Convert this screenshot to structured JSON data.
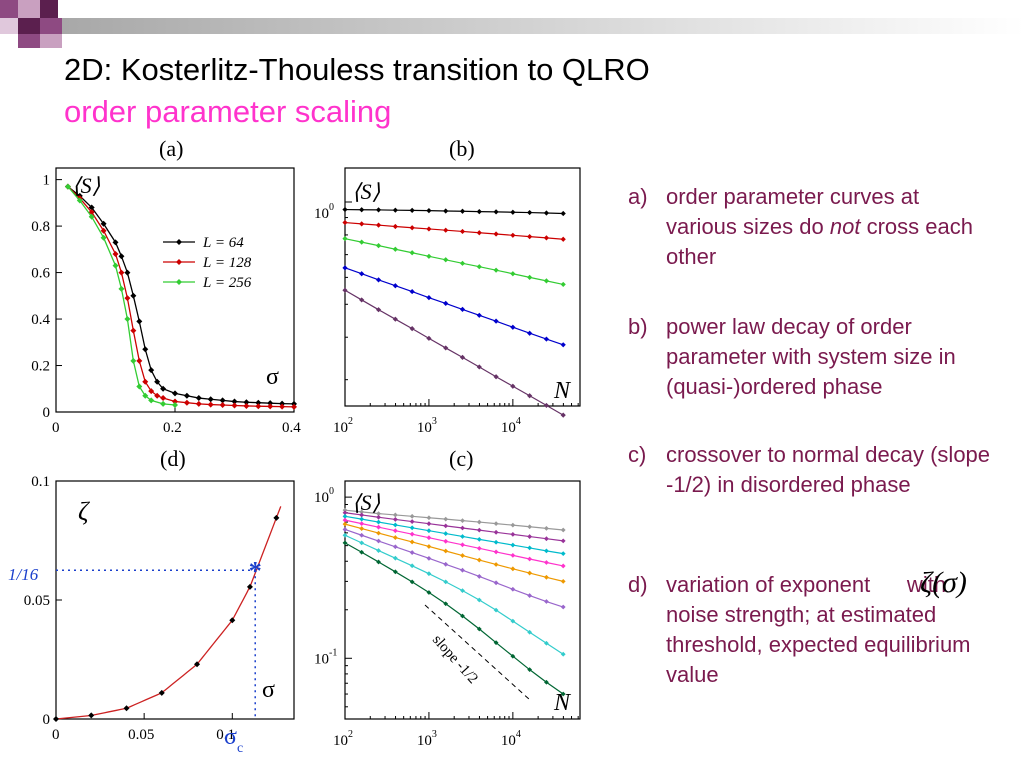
{
  "slide": {
    "title": "2D: Kosterlitz-Thouless transition to QLRO",
    "subtitle": "order parameter scaling",
    "colors": {
      "title": "#000000",
      "subtitle": "#ff33cc",
      "notes": "#7a1a4e",
      "deco_dark": "#5b1f4e",
      "deco_mid": "#8e4a82",
      "deco_light": "#c9a0c0"
    }
  },
  "panels": {
    "a": {
      "label": "(a)",
      "y_axis_label": "⟨S⟩",
      "x_axis_label": "σ",
      "x_ticks": [
        "0",
        "0.2",
        "0.4"
      ],
      "y_ticks": [
        "0",
        "0.2",
        "0.4",
        "0.6",
        "0.8",
        "1"
      ]
    },
    "b": {
      "label": "(b)",
      "y_axis_label": "⟨S⟩",
      "x_axis_label": "N",
      "y_tick": "10",
      "y_tick_exp": "0",
      "x_ticks": [
        {
          "base": "10",
          "exp": "2"
        },
        {
          "base": "10",
          "exp": "3"
        },
        {
          "base": "10",
          "exp": "4"
        }
      ]
    },
    "c": {
      "label": "(c)",
      "y_axis_label": "⟨S⟩",
      "x_axis_label": "N",
      "y_ticks": [
        {
          "base": "10",
          "exp": "0"
        },
        {
          "base": "10",
          "exp": "-1"
        }
      ],
      "x_ticks": [
        {
          "base": "10",
          "exp": "2"
        },
        {
          "base": "10",
          "exp": "3"
        },
        {
          "base": "10",
          "exp": "4"
        }
      ],
      "annotation": "slope -1/2"
    },
    "d": {
      "label": "(d)",
      "y_axis_label": "ζ",
      "x_axis_label": "σ",
      "x_ticks": [
        "0",
        "0.05",
        "0.1"
      ],
      "y_ticks": [
        "0",
        "0.05",
        "0.1"
      ],
      "marker_y_label": "1/16",
      "marker_x_label": "σ",
      "marker_x_sub": "c"
    }
  },
  "chart_data": [
    {
      "type": "line",
      "panel": "a",
      "title": "",
      "xlabel": "σ",
      "ylabel": "⟨S⟩",
      "xlim": [
        0,
        0.4
      ],
      "ylim": [
        0,
        1.05
      ],
      "legend": "top-right",
      "series": [
        {
          "name": "L = 64",
          "color": "#000000",
          "x": [
            0.02,
            0.04,
            0.06,
            0.08,
            0.1,
            0.11,
            0.12,
            0.13,
            0.14,
            0.15,
            0.16,
            0.17,
            0.18,
            0.2,
            0.22,
            0.24,
            0.26,
            0.28,
            0.3,
            0.32,
            0.34,
            0.36,
            0.38,
            0.4
          ],
          "y": [
            0.97,
            0.93,
            0.88,
            0.81,
            0.73,
            0.67,
            0.6,
            0.5,
            0.39,
            0.27,
            0.18,
            0.13,
            0.1,
            0.08,
            0.07,
            0.06,
            0.055,
            0.05,
            0.045,
            0.042,
            0.04,
            0.038,
            0.036,
            0.035
          ]
        },
        {
          "name": "L = 128",
          "color": "#cc0000",
          "x": [
            0.02,
            0.04,
            0.06,
            0.08,
            0.1,
            0.11,
            0.12,
            0.13,
            0.14,
            0.15,
            0.16,
            0.17,
            0.18,
            0.2,
            0.22,
            0.24,
            0.26,
            0.28,
            0.3,
            0.32,
            0.34,
            0.36,
            0.38,
            0.4
          ],
          "y": [
            0.97,
            0.92,
            0.86,
            0.78,
            0.68,
            0.6,
            0.49,
            0.35,
            0.22,
            0.13,
            0.09,
            0.07,
            0.06,
            0.045,
            0.04,
            0.035,
            0.032,
            0.03,
            0.028,
            0.026,
            0.025,
            0.024,
            0.023,
            0.022
          ]
        },
        {
          "name": "L = 256",
          "color": "#33cc33",
          "x": [
            0.02,
            0.04,
            0.06,
            0.08,
            0.1,
            0.11,
            0.12,
            0.13,
            0.14,
            0.15,
            0.16,
            0.18,
            0.2
          ],
          "y": [
            0.97,
            0.91,
            0.84,
            0.75,
            0.63,
            0.53,
            0.4,
            0.22,
            0.11,
            0.07,
            0.05,
            0.035,
            0.03
          ]
        }
      ]
    },
    {
      "type": "line",
      "panel": "b",
      "title": "",
      "xlabel": "N",
      "ylabel": "⟨S⟩",
      "x_scale": "log",
      "y_scale": "log",
      "xlim": [
        100,
        63096
      ],
      "ylim": [
        0.251,
        1.259
      ],
      "x": [
        100,
        158,
        251,
        398,
        631,
        1000,
        1585,
        2512,
        3981,
        6310,
        10000,
        15849,
        25119,
        39811
      ],
      "series": [
        {
          "color": "#000000",
          "values": [
            0.95,
            0.949,
            0.948,
            0.946,
            0.945,
            0.943,
            0.941,
            0.939,
            0.937,
            0.935,
            0.933,
            0.931,
            0.928,
            0.925
          ]
        },
        {
          "color": "#cc0000",
          "values": [
            0.87,
            0.862,
            0.855,
            0.847,
            0.84,
            0.833,
            0.826,
            0.819,
            0.812,
            0.805,
            0.798,
            0.791,
            0.784,
            0.777
          ]
        },
        {
          "color": "#33cc33",
          "values": [
            0.78,
            0.762,
            0.744,
            0.726,
            0.709,
            0.692,
            0.676,
            0.66,
            0.645,
            0.63,
            0.615,
            0.6,
            0.586,
            0.572
          ]
        },
        {
          "color": "#0000cc",
          "values": [
            0.64,
            0.615,
            0.59,
            0.567,
            0.545,
            0.523,
            0.503,
            0.483,
            0.464,
            0.446,
            0.428,
            0.411,
            0.395,
            0.38
          ]
        },
        {
          "color": "#663366",
          "values": [
            0.55,
            0.515,
            0.482,
            0.452,
            0.424,
            0.397,
            0.372,
            0.349,
            0.327,
            0.306,
            0.287,
            0.269,
            0.252,
            0.236
          ]
        }
      ]
    },
    {
      "type": "line",
      "panel": "c",
      "title": "",
      "xlabel": "N",
      "ylabel": "⟨S⟩",
      "x_scale": "log",
      "y_scale": "log",
      "xlim": [
        100,
        63096
      ],
      "ylim": [
        0.042,
        1.259
      ],
      "x": [
        100,
        158,
        251,
        398,
        631,
        1000,
        1585,
        2512,
        3981,
        6310,
        10000,
        15849,
        25119,
        39811
      ],
      "series": [
        {
          "color": "#999999",
          "values": [
            0.83,
            0.81,
            0.79,
            0.775,
            0.76,
            0.745,
            0.73,
            0.715,
            0.7,
            0.685,
            0.67,
            0.655,
            0.64,
            0.625
          ]
        },
        {
          "color": "#993399",
          "values": [
            0.8,
            0.775,
            0.75,
            0.727,
            0.705,
            0.684,
            0.663,
            0.643,
            0.624,
            0.605,
            0.587,
            0.569,
            0.552,
            0.535
          ]
        },
        {
          "color": "#00bbcc",
          "values": [
            0.76,
            0.73,
            0.7,
            0.672,
            0.645,
            0.619,
            0.594,
            0.57,
            0.547,
            0.525,
            0.504,
            0.484,
            0.464,
            0.446
          ]
        },
        {
          "color": "#ff33cc",
          "values": [
            0.72,
            0.685,
            0.651,
            0.619,
            0.589,
            0.56,
            0.532,
            0.506,
            0.481,
            0.457,
            0.435,
            0.413,
            0.393,
            0.374
          ]
        },
        {
          "color": "#ee9900",
          "values": [
            0.68,
            0.638,
            0.598,
            0.561,
            0.527,
            0.494,
            0.463,
            0.434,
            0.407,
            0.382,
            0.359,
            0.338,
            0.318,
            0.3
          ]
        },
        {
          "color": "#9966cc",
          "values": [
            0.63,
            0.58,
            0.534,
            0.492,
            0.453,
            0.417,
            0.383,
            0.352,
            0.322,
            0.294,
            0.268,
            0.245,
            0.225,
            0.208
          ]
        },
        {
          "color": "#33cccc",
          "values": [
            0.58,
            0.52,
            0.466,
            0.418,
            0.375,
            0.335,
            0.298,
            0.263,
            0.23,
            0.199,
            0.17,
            0.145,
            0.124,
            0.106
          ]
        },
        {
          "color": "#006633",
          "values": [
            0.52,
            0.455,
            0.396,
            0.344,
            0.298,
            0.256,
            0.218,
            0.183,
            0.152,
            0.125,
            0.103,
            0.085,
            0.071,
            0.06
          ]
        }
      ]
    },
    {
      "type": "scatter",
      "panel": "d",
      "title": "",
      "xlabel": "σ",
      "ylabel": "ζ",
      "xlim": [
        0,
        0.135
      ],
      "ylim": [
        0,
        0.1
      ],
      "series": [
        {
          "name": "ζ(σ)",
          "color": "#000000",
          "line_color": "#cc2222",
          "x": [
            0,
            0.02,
            0.04,
            0.06,
            0.08,
            0.1,
            0.11,
            0.125
          ],
          "y": [
            0,
            0.0015,
            0.0045,
            0.011,
            0.023,
            0.0415,
            0.0555,
            0.0845
          ]
        }
      ],
      "marker": {
        "x": 0.113,
        "y": 0.0625,
        "color": "#1a3fcc"
      }
    }
  ],
  "notes": [
    {
      "tag": "a)",
      "text_before": "order parameter curves at various sizes do ",
      "emphasis": "not",
      "text_after": " cross each other"
    },
    {
      "tag": "b)",
      "text": "power law decay of order parameter with system size in (quasi-)ordered phase"
    },
    {
      "tag": "c)",
      "text": "crossover to normal decay (slope -1/2) in disordered phase"
    },
    {
      "tag": "d)",
      "text": "variation of exponent      with noise strength; at estimated threshold, expected equilibrium value"
    }
  ],
  "zeta_formula": "ζ(σ)"
}
